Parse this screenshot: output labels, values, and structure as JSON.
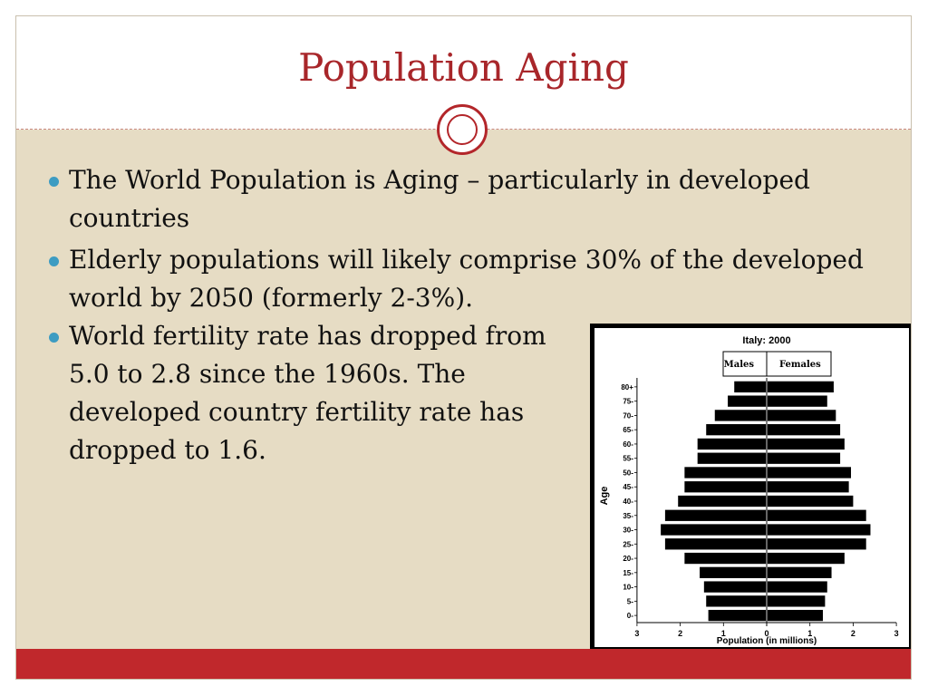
{
  "slide": {
    "title": "Population Aging",
    "bullets": [
      "The World Population is Aging – particularly in developed countries",
      "Elderly populations will likely comprise 30% of the developed world by 2050 (formerly 2-3%).",
      "World fertility rate has dropped from 5.0 to 2.8 since the 1960s.  The developed country fertility rate has dropped to 1.6."
    ]
  },
  "colors": {
    "title": "#a8262a",
    "accent_red": "#c0282c",
    "bullet_dot": "#3d9cc2",
    "background": "#e6dcc4"
  },
  "chart_data": {
    "type": "bar",
    "subtype": "population-pyramid",
    "title": "Italy: 2000",
    "xlabel": "Population (in millions)",
    "ylabel": "Age",
    "xlim": [
      -3,
      3
    ],
    "x_ticks": [
      "3",
      "2",
      "1",
      "0",
      "1",
      "2",
      "3"
    ],
    "legend": {
      "left": "Males",
      "right": "Females",
      "placement": "top"
    },
    "categories": [
      "0-",
      "5-",
      "10-",
      "15-",
      "20-",
      "25-",
      "30-",
      "35-",
      "40-",
      "45-",
      "50-",
      "55-",
      "60-",
      "65-",
      "70-",
      "75-",
      "80+"
    ],
    "series": [
      {
        "name": "Males",
        "values": [
          1.35,
          1.4,
          1.45,
          1.55,
          1.9,
          2.35,
          2.45,
          2.35,
          2.05,
          1.9,
          1.9,
          1.6,
          1.6,
          1.4,
          1.2,
          0.9,
          0.75
        ]
      },
      {
        "name": "Females",
        "values": [
          1.3,
          1.35,
          1.4,
          1.5,
          1.8,
          2.3,
          2.4,
          2.3,
          2.0,
          1.9,
          1.95,
          1.7,
          1.8,
          1.7,
          1.6,
          1.4,
          1.55
        ]
      }
    ],
    "grid": false
  }
}
